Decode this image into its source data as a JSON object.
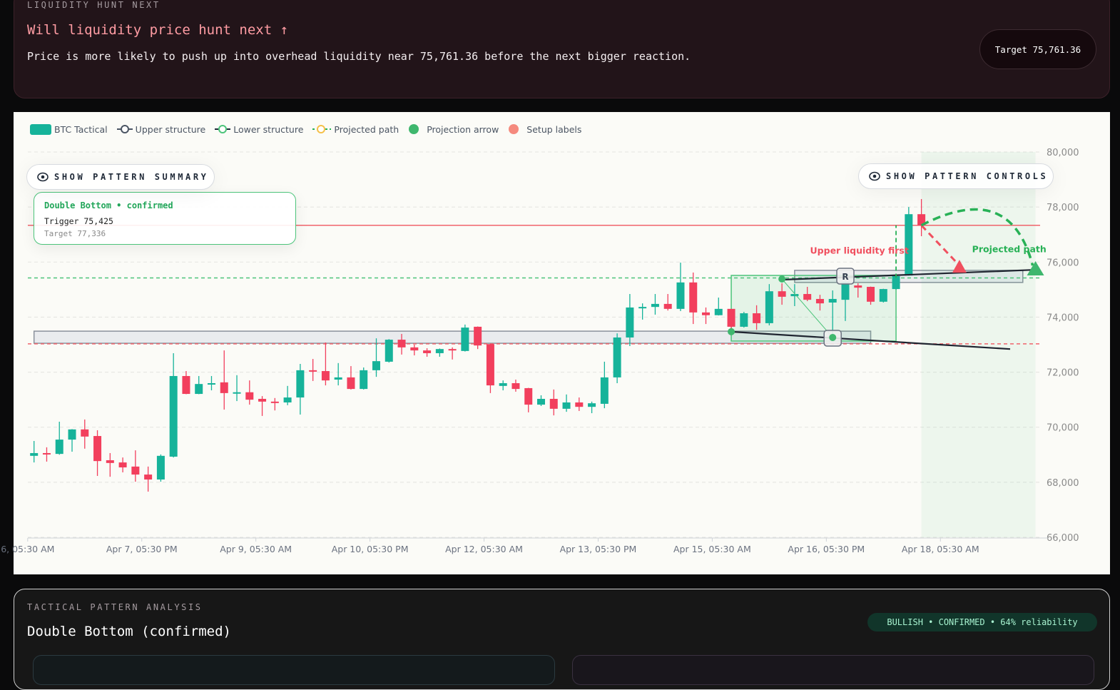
{
  "liquidity": {
    "eyebrow": "LIQUIDITY HUNT NEXT",
    "title": "Will liquidity price hunt next ↑",
    "body": "Price is more likely to push up into overhead liquidity near 75,761.36 before the next bigger reaction.",
    "target_pill": "Target 75,761.36"
  },
  "chart_panel": {
    "legend": [
      {
        "label": "BTC Tactical",
        "icon": "teal-swatch",
        "color": "#16b39a"
      },
      {
        "label": "Upper structure",
        "icon": "line-circle",
        "color": "#4b5563"
      },
      {
        "label": "Lower structure",
        "icon": "line-circle",
        "color": "#4cc47a"
      },
      {
        "label": "Projected path",
        "icon": "dashed-line-circle",
        "color": "#f5c04a"
      },
      {
        "label": "Projection arrow",
        "icon": "dot",
        "color": "#3fb76e"
      },
      {
        "label": "Setup labels",
        "icon": "dot",
        "color": "#f58a7e"
      }
    ],
    "summary_button": "SHOW PATTERN SUMMARY",
    "controls_button": "SHOW PATTERN CONTROLS",
    "pattern_card": {
      "title": "Double Bottom • confirmed",
      "trigger": "Trigger 75,425",
      "target": "Target 77,336"
    }
  },
  "chart_data": {
    "type": "candlestick",
    "series_name": "BTC Tactical",
    "colors": {
      "up": "#16b39a",
      "down": "#f23f5d"
    },
    "ylim": [
      66000,
      80000
    ],
    "yticks": [
      80000,
      78000,
      76000,
      74000,
      72000,
      70000,
      68000,
      66000
    ],
    "ytick_labels": [
      "80,000",
      "78,000",
      "76,000",
      "74,000",
      "72,000",
      "70,000",
      "68,000",
      "66,000"
    ],
    "xticks": [
      {
        "t": "04-06 05:30",
        "label": "6, 05:30 AM"
      },
      {
        "t": "04-07 17:30",
        "label": "Apr 7, 05:30 PM"
      },
      {
        "t": "04-09 05:30",
        "label": "Apr 9, 05:30 AM"
      },
      {
        "t": "04-10 17:30",
        "label": "Apr 10, 05:30 PM"
      },
      {
        "t": "04-12 05:30",
        "label": "Apr 12, 05:30 AM"
      },
      {
        "t": "04-13 17:30",
        "label": "Apr 13, 05:30 PM"
      },
      {
        "t": "04-15 05:30",
        "label": "Apr 15, 05:30 AM"
      },
      {
        "t": "04-16 17:30",
        "label": "Apr 16, 05:30 PM"
      },
      {
        "t": "04-18 05:30",
        "label": "Apr 18, 05:30 AM"
      }
    ],
    "x_end": "04-19 15:30",
    "grid": true,
    "candle_interval_hours": 4,
    "first_candle": "04-06 07:30",
    "ohlc": [
      [
        68960,
        69500,
        68720,
        69060
      ],
      [
        69060,
        69270,
        68750,
        69030
      ],
      [
        69030,
        70200,
        69000,
        69550
      ],
      [
        69550,
        69930,
        69110,
        69920
      ],
      [
        69920,
        70280,
        69220,
        69660
      ],
      [
        69680,
        69890,
        68230,
        68770
      ],
      [
        68800,
        69060,
        68200,
        68700
      ],
      [
        68720,
        68900,
        68360,
        68540
      ],
      [
        68570,
        69160,
        68020,
        68280
      ],
      [
        68280,
        68570,
        67660,
        68100
      ],
      [
        68100,
        69010,
        68020,
        68960
      ],
      [
        68930,
        72690,
        68900,
        71860
      ],
      [
        71860,
        72040,
        71200,
        71210
      ],
      [
        71210,
        71860,
        71200,
        71570
      ],
      [
        71550,
        71860,
        71340,
        71600
      ],
      [
        71630,
        72790,
        70640,
        71240
      ],
      [
        71240,
        71890,
        70950,
        71270
      ],
      [
        71270,
        71700,
        70820,
        71000
      ],
      [
        71030,
        71130,
        70410,
        70930
      ],
      [
        70930,
        71060,
        70610,
        70900
      ],
      [
        70900,
        71500,
        70800,
        71080
      ],
      [
        71080,
        72300,
        70460,
        72070
      ],
      [
        72070,
        72480,
        71680,
        72020
      ],
      [
        72040,
        73080,
        71520,
        71700
      ],
      [
        71730,
        72330,
        71520,
        71810
      ],
      [
        71810,
        72220,
        71370,
        71390
      ],
      [
        71390,
        72170,
        71370,
        72070
      ],
      [
        72070,
        73230,
        71830,
        72400
      ],
      [
        72380,
        73200,
        72350,
        73180
      ],
      [
        73180,
        73390,
        72640,
        72900
      ],
      [
        72900,
        73000,
        72610,
        72790
      ],
      [
        72790,
        72870,
        72560,
        72690
      ],
      [
        72690,
        72860,
        72560,
        72840
      ],
      [
        72840,
        72900,
        72460,
        72790
      ],
      [
        72770,
        73730,
        72750,
        73620
      ],
      [
        73650,
        73660,
        72840,
        72970
      ],
      [
        73020,
        73030,
        71240,
        71520
      ],
      [
        71500,
        71700,
        71340,
        71600
      ],
      [
        71600,
        71730,
        71290,
        71390
      ],
      [
        71420,
        71430,
        70540,
        70820
      ],
      [
        70820,
        71160,
        70770,
        71030
      ],
      [
        71030,
        71370,
        70430,
        70670
      ],
      [
        70670,
        71190,
        70560,
        70900
      ],
      [
        70900,
        71080,
        70590,
        70740
      ],
      [
        70740,
        70930,
        70510,
        70870
      ],
      [
        70850,
        72380,
        70690,
        71810
      ],
      [
        71810,
        73410,
        71600,
        73260
      ],
      [
        73260,
        74840,
        72950,
        74350
      ],
      [
        74350,
        74500,
        73910,
        74370
      ],
      [
        74370,
        74840,
        74090,
        74480
      ],
      [
        74480,
        74840,
        74240,
        74300
      ],
      [
        74300,
        75980,
        74220,
        75260
      ],
      [
        75260,
        75620,
        73750,
        74170
      ],
      [
        74170,
        74350,
        73750,
        74070
      ],
      [
        74070,
        74710,
        74060,
        74300
      ],
      [
        74300,
        74300,
        73600,
        73650
      ],
      [
        73650,
        74190,
        73620,
        74140
      ],
      [
        74140,
        74430,
        73540,
        73780
      ],
      [
        73780,
        75200,
        73700,
        74940
      ],
      [
        74940,
        75230,
        74450,
        74740
      ],
      [
        74760,
        75200,
        74400,
        74840
      ],
      [
        74840,
        75100,
        74580,
        74630
      ],
      [
        74660,
        74810,
        74240,
        74500
      ],
      [
        74530,
        74970,
        73260,
        74660
      ],
      [
        74630,
        75290,
        73860,
        75280
      ],
      [
        75150,
        75230,
        74710,
        75070
      ],
      [
        75100,
        75110,
        74450,
        74560
      ],
      [
        74560,
        75030,
        74530,
        75020
      ],
      [
        75020,
        75510,
        75000,
        75490
      ],
      [
        75510,
        78000,
        75510,
        77740
      ],
      [
        77740,
        78290,
        76940,
        77330
      ]
    ],
    "levels": [
      {
        "name": "target",
        "price": 77336,
        "color": "#f0646c",
        "style": "solid"
      },
      {
        "name": "trigger",
        "price": 75425,
        "color": "#4cc47a",
        "style": "dashed"
      },
      {
        "name": "lower-liquidity",
        "price": 73030,
        "color": "#f0646c",
        "style": "dashed"
      }
    ],
    "zones": [
      {
        "name": "lower-structure-zone",
        "t0": "04-06 07:30",
        "t1": "04-17 07:30",
        "p0": 73050,
        "p1": 73490,
        "fill": "#e9ebee",
        "stroke": "#8a919c"
      },
      {
        "name": "upper-structure-zone",
        "t0": "04-16 07:30",
        "t1": "04-19 07:30",
        "p0": 75260,
        "p1": 75700,
        "fill": "#e9ebee",
        "stroke": "#8a919c"
      },
      {
        "name": "pattern-box",
        "t0": "04-15 11:30",
        "t1": "04-17 15:30",
        "p0": 73130,
        "p1": 75515,
        "fill": "rgba(76,196,122,0.13)",
        "stroke": "#4cc47a"
      },
      {
        "name": "projection-zone",
        "t0": "04-17 23:30",
        "t1": "04-19 11:30",
        "p0": 66000,
        "p1": 80000,
        "fill": "rgba(76,196,122,0.08)",
        "stroke": "none"
      }
    ],
    "trendlines": [
      {
        "name": "upper-trendline",
        "t0": "04-16 03:30",
        "p0": 75360,
        "t1": "04-19 11:30",
        "p1": 75720,
        "color": "#1f2430"
      },
      {
        "name": "lower-trendline",
        "t0": "04-15 11:30",
        "p0": 73470,
        "t1": "04-19 03:30",
        "p1": 72840,
        "color": "#1f2430"
      }
    ],
    "pivots": [
      {
        "t": "04-15 11:30",
        "p": 73470
      },
      {
        "t": "04-16 03:30",
        "p": 75385
      },
      {
        "t": "04-16 19:30",
        "p": 73260
      }
    ],
    "pivot_labels": [
      {
        "t": "04-16 23:30",
        "p": 75515,
        "text": "R"
      },
      {
        "t": "04-16 19:30",
        "p": 73260,
        "text": ""
      }
    ],
    "breakout_marker": {
      "t": "04-17 15:30",
      "p0": 75425,
      "p1": 77336
    },
    "projections": [
      {
        "name": "upper-liquidity-first",
        "label": "Upper liquidity first",
        "color": "#f0505f",
        "t0": "04-17 23:30",
        "p0": 77336,
        "t1": "04-18 11:30",
        "p1": 75720,
        "label_t": "04-17 19:30",
        "label_p": 76300
      },
      {
        "name": "projected-path",
        "label": "Projected path",
        "color": "#28b156",
        "t0": "04-17 23:30",
        "p0": 77336,
        "tc": "04-19 03:30",
        "pc": 79000,
        "t1": "04-19 11:30",
        "p1": 75670,
        "label_t": "04-18 15:30",
        "label_p": 76360
      }
    ]
  },
  "analysis": {
    "eyebrow": "TACTICAL PATTERN ANALYSIS",
    "title": "Double Bottom (confirmed)",
    "badge": "BULLISH • CONFIRMED • 64% reliability"
  }
}
